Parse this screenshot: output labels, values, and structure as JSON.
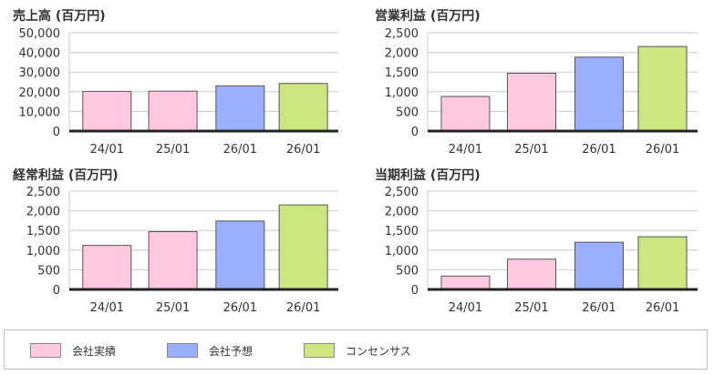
{
  "chart_data": [
    {
      "type": "bar",
      "title": "売上高 (百万円)",
      "categories": [
        "24/01",
        "25/01",
        "26/01",
        "26/01"
      ],
      "values": [
        20200,
        20300,
        23000,
        24200
      ],
      "series_kind": [
        "actual",
        "actual",
        "forecast",
        "consensus"
      ],
      "ylim": [
        0,
        50000
      ],
      "yticks": [
        "0",
        "10,000",
        "20,000",
        "30,000",
        "40,000",
        "50,000"
      ],
      "grid": true
    },
    {
      "type": "bar",
      "title": "営業利益 (百万円)",
      "categories": [
        "24/01",
        "25/01",
        "26/01",
        "26/01"
      ],
      "values": [
        880,
        1470,
        1880,
        2150
      ],
      "series_kind": [
        "actual",
        "actual",
        "forecast",
        "consensus"
      ],
      "ylim": [
        0,
        2500
      ],
      "yticks": [
        "0",
        "500",
        "1,000",
        "1,500",
        "2,000",
        "2,500"
      ],
      "grid": true
    },
    {
      "type": "bar",
      "title": "経常利益 (百万円)",
      "categories": [
        "24/01",
        "25/01",
        "26/01",
        "26/01"
      ],
      "values": [
        1120,
        1470,
        1740,
        2150
      ],
      "series_kind": [
        "actual",
        "actual",
        "forecast",
        "consensus"
      ],
      "ylim": [
        0,
        2500
      ],
      "yticks": [
        "0",
        "500",
        "1,000",
        "1,500",
        "2,000",
        "2,500"
      ],
      "grid": true
    },
    {
      "type": "bar",
      "title": "当期利益 (百万円)",
      "categories": [
        "24/01",
        "25/01",
        "26/01",
        "26/01"
      ],
      "values": [
        340,
        770,
        1200,
        1340
      ],
      "series_kind": [
        "actual",
        "actual",
        "forecast",
        "consensus"
      ],
      "ylim": [
        0,
        2500
      ],
      "yticks": [
        "0",
        "500",
        "1,000",
        "1,500",
        "2,000",
        "2,500"
      ],
      "grid": true
    }
  ],
  "legend": [
    {
      "kind": "actual",
      "label": "会社実績",
      "color": "#ffc8e0"
    },
    {
      "kind": "forecast",
      "label": "会社予想",
      "color": "#9ab0ff"
    },
    {
      "kind": "consensus",
      "label": "コンセンサス",
      "color": "#cce680"
    }
  ]
}
